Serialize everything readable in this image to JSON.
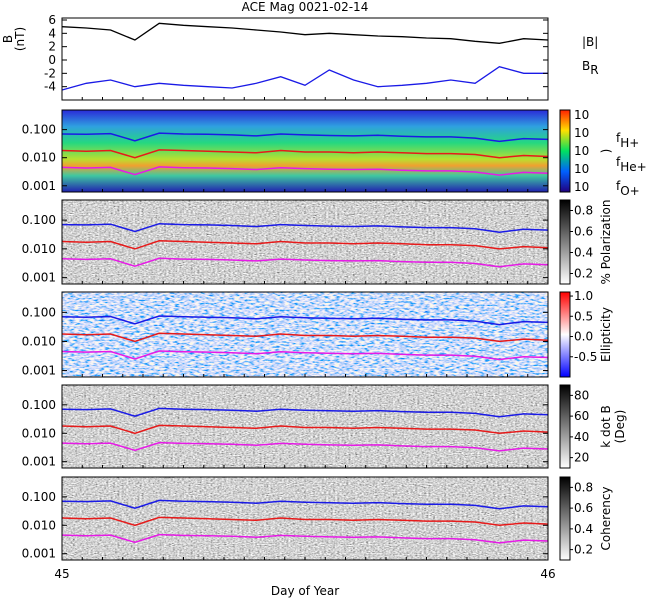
{
  "chart_data": [
    {
      "type": "line",
      "title": "ACE Mag 0021-02-14",
      "ylabel": [
        "B",
        "(nT)"
      ],
      "x": [
        45.0,
        45.05,
        45.1,
        45.15,
        45.2,
        45.25,
        45.3,
        45.35,
        45.4,
        45.45,
        45.5,
        45.55,
        45.6,
        45.65,
        45.7,
        45.75,
        45.8,
        45.85,
        45.9,
        45.95,
        46.0
      ],
      "xlim": [
        45,
        46
      ],
      "ylim": [
        -6,
        6.3
      ],
      "yticks": [
        -4,
        -2,
        0,
        2,
        4,
        6
      ],
      "series": [
        {
          "name": "|B|",
          "color": "#000000",
          "values": [
            5,
            4.8,
            4.5,
            3,
            5.5,
            5.2,
            5,
            4.8,
            4.5,
            4.2,
            3.8,
            4,
            3.8,
            3.6,
            3.5,
            3.3,
            3.2,
            2.8,
            2.5,
            3.2,
            3
          ]
        },
        {
          "name": "B",
          "name_sub": "R",
          "color": "#1a1ae6",
          "values": [
            -4.5,
            -3.5,
            -3,
            -4,
            -3.5,
            -3.8,
            -4,
            -4.2,
            -3.5,
            -2.5,
            -3.8,
            -1.5,
            -3,
            -4,
            -3.8,
            -3.5,
            -3,
            -3.5,
            -1,
            -2,
            -2
          ]
        }
      ]
    },
    {
      "type": "spectrogram",
      "ylim": [
        0.0006,
        0.5
      ],
      "log_y": true,
      "yticks": [
        {
          "value": 0.001,
          "label": "0.001"
        },
        {
          "value": 0.01,
          "label": "0.010"
        },
        {
          "value": 0.1,
          "label": "0.100"
        }
      ],
      "colormap": "rainbow",
      "colorbar": {
        "label": ")",
        "ticks": [
          "10",
          "10",
          "10",
          "10",
          "10"
        ]
      },
      "series": [
        {
          "name": "f",
          "name_sub": "H+",
          "color": "#1a1ae6",
          "values": [
            0.07,
            0.068,
            0.072,
            0.04,
            0.075,
            0.07,
            0.068,
            0.065,
            0.06,
            0.07,
            0.065,
            0.062,
            0.06,
            0.063,
            0.058,
            0.055,
            0.055,
            0.05,
            0.038,
            0.048,
            0.045
          ]
        },
        {
          "name": "f",
          "name_sub": "He+",
          "color": "#e61a1a",
          "values": [
            0.018,
            0.017,
            0.018,
            0.01,
            0.019,
            0.018,
            0.017,
            0.016,
            0.015,
            0.018,
            0.016,
            0.016,
            0.015,
            0.016,
            0.015,
            0.014,
            0.014,
            0.013,
            0.01,
            0.012,
            0.011
          ]
        },
        {
          "name": "f",
          "name_sub": "O+",
          "color": "#e61ae6",
          "values": [
            0.0045,
            0.0043,
            0.0045,
            0.0025,
            0.0047,
            0.0044,
            0.0043,
            0.0041,
            0.0038,
            0.0044,
            0.0041,
            0.0039,
            0.0038,
            0.0039,
            0.0036,
            0.0034,
            0.0034,
            0.0031,
            0.0024,
            0.003,
            0.0028
          ]
        }
      ]
    },
    {
      "type": "spectrogram",
      "ylim": [
        0.0006,
        0.5
      ],
      "log_y": true,
      "yticks": [
        {
          "value": 0.001,
          "label": "0.001"
        },
        {
          "value": 0.01,
          "label": "0.010"
        },
        {
          "value": 0.1,
          "label": "0.100"
        }
      ],
      "colormap": "gray",
      "colorbar": {
        "label": "% Polarization",
        "lim": [
          0.1,
          0.9
        ],
        "ticks": [
          0.2,
          0.4,
          0.6,
          0.8
        ]
      }
    },
    {
      "type": "spectrogram",
      "ylim": [
        0.0006,
        0.5
      ],
      "log_y": true,
      "yticks": [
        {
          "value": 0.001,
          "label": "0.001"
        },
        {
          "value": 0.01,
          "label": "0.010"
        },
        {
          "value": 0.1,
          "label": "0.100"
        }
      ],
      "colormap": "bluered",
      "colorbar": {
        "label": "Ellipticity",
        "lim": [
          -1,
          1.1
        ],
        "ticks": [
          {
            "value": -0.5,
            "label": "-0.5"
          },
          {
            "value": 0,
            "label": "0.0"
          },
          {
            "value": 0.5,
            "label": "0.5"
          },
          {
            "value": 1,
            "label": "1.0"
          }
        ]
      }
    },
    {
      "type": "spectrogram",
      "ylim": [
        0.0006,
        0.5
      ],
      "log_y": true,
      "yticks": [
        {
          "value": 0.001,
          "label": "0.001"
        },
        {
          "value": 0.01,
          "label": "0.010"
        },
        {
          "value": 0.1,
          "label": "0.100"
        }
      ],
      "colormap": "gray",
      "colorbar": {
        "label": [
          "k dot B",
          "(Deg)"
        ],
        "lim": [
          10,
          90
        ],
        "ticks": [
          20,
          40,
          60,
          80
        ]
      }
    },
    {
      "type": "spectrogram",
      "ylim": [
        0.0006,
        0.5
      ],
      "log_y": true,
      "yticks": [
        {
          "value": 0.001,
          "label": "0.001"
        },
        {
          "value": 0.01,
          "label": "0.010"
        },
        {
          "value": 0.1,
          "label": "0.100"
        }
      ],
      "colormap": "gray",
      "colorbar": {
        "label": "Coherency",
        "lim": [
          0.1,
          0.9
        ],
        "ticks": [
          0.2,
          0.4,
          0.6,
          0.8
        ]
      },
      "xticks": [
        45,
        46
      ],
      "xlabel": "Day of Year"
    }
  ]
}
